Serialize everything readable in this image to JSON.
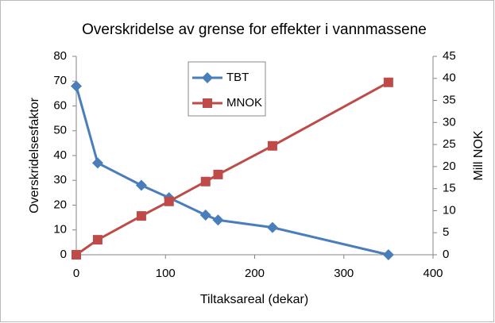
{
  "chart_data": {
    "type": "line",
    "title": "Overskridelse av grense for effekter i vannmassene",
    "x_label": "Tiltaksareal (dekar)",
    "y_label": "Overskridelsesfaktor",
    "y2_label": "Mill NOK",
    "x": [
      0,
      24,
      73,
      104,
      145,
      159,
      220,
      350
    ],
    "series": [
      {
        "name": "TBT",
        "color": "#4a7ebb",
        "marker": "diamond",
        "values": [
          68,
          37,
          28,
          23,
          16,
          14,
          11,
          0
        ]
      },
      {
        "name": "MNOK",
        "color": "#be4b48",
        "marker": "square",
        "axis": "y2",
        "values": [
          0,
          3.4,
          8.8,
          12.1,
          16.6,
          18.2,
          24.7,
          39.1
        ]
      }
    ],
    "xlim": [
      0,
      400
    ],
    "xticks": [
      0,
      100,
      200,
      300,
      400
    ],
    "ylim": [
      0,
      80
    ],
    "yticks": [
      0,
      10,
      20,
      30,
      40,
      50,
      60,
      70,
      80
    ],
    "y2lim": [
      0,
      45
    ],
    "y2ticks": [
      0,
      5,
      10,
      15,
      20,
      25,
      30,
      35,
      40,
      45
    ],
    "grid": false,
    "legend": "top"
  }
}
